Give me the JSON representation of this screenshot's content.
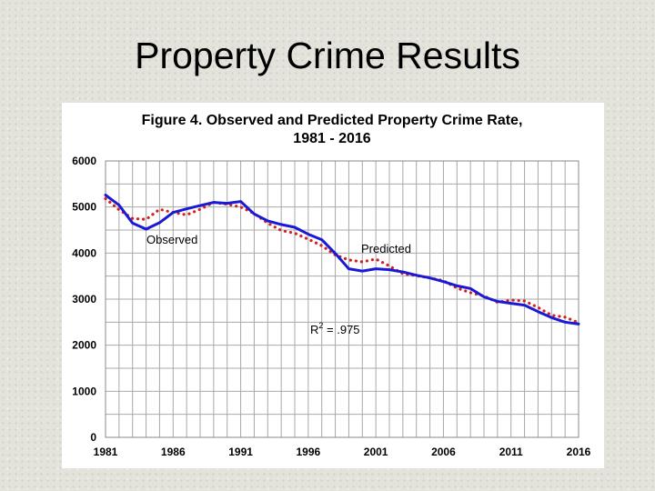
{
  "slide": {
    "title": "Property Crime Results"
  },
  "chart_data": {
    "type": "line",
    "title_line1": "Figure 4. Observed and Predicted Property Crime Rate,",
    "title_line2": "1981 - 2016",
    "xlabel": "",
    "ylabel": "",
    "xlim": [
      1981,
      2016
    ],
    "ylim": [
      0,
      6000
    ],
    "xticks": [
      1981,
      1986,
      1991,
      1996,
      2001,
      2006,
      2011,
      2016
    ],
    "yticks": [
      0,
      1000,
      2000,
      3000,
      4000,
      5000,
      6000
    ],
    "grid": true,
    "x": [
      1981,
      1982,
      1983,
      1984,
      1985,
      1986,
      1987,
      1988,
      1989,
      1990,
      1991,
      1992,
      1993,
      1994,
      1995,
      1996,
      1997,
      1998,
      1999,
      2000,
      2001,
      2002,
      2003,
      2004,
      2005,
      2006,
      2007,
      2008,
      2009,
      2010,
      2011,
      2012,
      2013,
      2014,
      2015,
      2016
    ],
    "series": [
      {
        "name": "Observed",
        "color": "#1a1ad6",
        "style": "solid",
        "values": [
          5260,
          5040,
          4650,
          4520,
          4660,
          4880,
          4960,
          5030,
          5100,
          5080,
          5120,
          4850,
          4700,
          4620,
          4560,
          4410,
          4290,
          3990,
          3660,
          3610,
          3660,
          3640,
          3590,
          3520,
          3460,
          3380,
          3290,
          3230,
          3050,
          2950,
          2910,
          2870,
          2730,
          2600,
          2500,
          2460
        ]
      },
      {
        "name": "Predicted",
        "color": "#d42020",
        "style": "dotted",
        "values": [
          5180,
          4940,
          4750,
          4730,
          4950,
          4880,
          4830,
          4950,
          5100,
          5060,
          5000,
          4860,
          4650,
          4490,
          4430,
          4300,
          4160,
          3960,
          3850,
          3810,
          3870,
          3720,
          3550,
          3510,
          3460,
          3400,
          3240,
          3140,
          3070,
          2930,
          2980,
          2960,
          2820,
          2650,
          2610,
          2490
        ]
      }
    ],
    "annotations": {
      "observed_label": "Observed",
      "predicted_label": "Predicted",
      "r2_prefix": "R",
      "r2_sup": "2",
      "r2_suffix": " = .975"
    }
  }
}
